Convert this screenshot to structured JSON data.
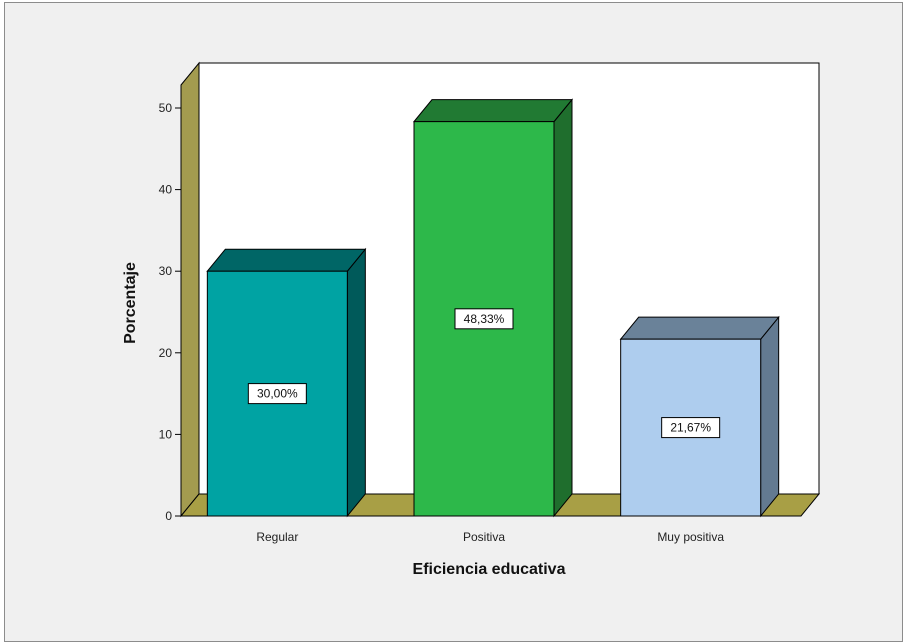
{
  "chart_data": {
    "type": "bar",
    "title": "",
    "xlabel": "Eficiencia educativa",
    "ylabel": "Porcentaje",
    "ylim": [
      0,
      50
    ],
    "yticks": [
      0,
      10,
      20,
      30,
      40,
      50
    ],
    "grid": false,
    "categories": [
      "Regular",
      "Positiva",
      "Muy positiva"
    ],
    "values": [
      30.0,
      48.33,
      21.67
    ],
    "value_labels": [
      "30,00%",
      "48,33%",
      "21,67%"
    ],
    "colors": {
      "front": [
        "#00a3a3",
        "#2db84a",
        "#aecdee"
      ],
      "top": [
        "#006666",
        "#217a33",
        "#6a8299"
      ],
      "side": [
        "#005a5a",
        "#1f6e2d",
        "#637a91"
      ],
      "wall_side": "#a39b4f",
      "floor": "#a89f45",
      "back_wall": "#ffffff"
    }
  }
}
